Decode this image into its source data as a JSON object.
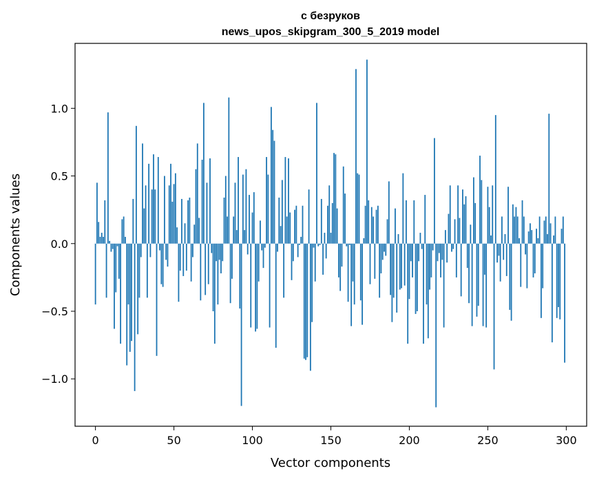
{
  "chart_data": {
    "type": "bar",
    "title_line1": "с безруков",
    "title_line2": "news_upos_skipgram_300_5_2019 model",
    "xlabel": "Vector components",
    "ylabel": "Components values",
    "xlim": [
      -13,
      313
    ],
    "ylim": [
      -1.35,
      1.48
    ],
    "x_ticks": [
      0,
      50,
      100,
      150,
      200,
      250,
      300
    ],
    "x_tick_labels": [
      "0",
      "50",
      "100",
      "150",
      "200",
      "250",
      "300"
    ],
    "y_ticks": [
      -1.0,
      -0.5,
      0.0,
      0.5,
      1.0
    ],
    "y_tick_labels": [
      "−1.0",
      "−0.5",
      "0.0",
      "0.5",
      "1.0"
    ],
    "bar_color": "#1f77b4",
    "grid": false,
    "values": [
      -0.45,
      0.45,
      0.16,
      0.05,
      0.08,
      0.05,
      0.32,
      -0.4,
      0.97,
      0.02,
      -0.06,
      -0.04,
      -0.63,
      -0.36,
      -0.02,
      -0.26,
      -0.74,
      0.18,
      0.2,
      0.05,
      -0.9,
      -0.45,
      -0.8,
      -0.72,
      0.33,
      -1.09,
      0.87,
      -0.67,
      -0.4,
      -0.1,
      0.74,
      0.26,
      0.43,
      -0.4,
      0.59,
      -0.1,
      0.4,
      0.66,
      0.4,
      -0.83,
      0.64,
      -0.05,
      -0.3,
      -0.32,
      0.5,
      -0.12,
      -0.17,
      0.43,
      0.59,
      0.31,
      0.44,
      0.52,
      0.12,
      -0.43,
      -0.2,
      0.33,
      -0.24,
      0.15,
      -0.2,
      0.32,
      0.34,
      -0.28,
      -0.1,
      0.14,
      0.55,
      0.74,
      0.19,
      -0.42,
      0.62,
      1.04,
      -0.38,
      0.45,
      -0.3,
      0.63,
      -0.07,
      -0.5,
      -0.74,
      -0.13,
      -0.45,
      -0.12,
      -0.22,
      -0.13,
      0.34,
      0.5,
      0.2,
      1.08,
      -0.44,
      -0.26,
      0.2,
      0.45,
      0.1,
      0.64,
      -0.48,
      -1.2,
      0.51,
      0.1,
      0.55,
      -0.08,
      0.36,
      -0.62,
      0.23,
      0.38,
      -0.65,
      -0.63,
      -0.28,
      0.17,
      -0.05,
      -0.18,
      -0.03,
      0.64,
      0.51,
      -0.62,
      1.01,
      0.84,
      0.76,
      -0.77,
      -0.06,
      0.34,
      0.13,
      0.47,
      -0.4,
      0.64,
      0.2,
      0.63,
      0.23,
      -0.27,
      -0.13,
      0.25,
      0.28,
      -0.1,
      -0.01,
      0.05,
      0.28,
      -0.85,
      -0.86,
      -0.84,
      0.4,
      -0.94,
      -0.58,
      -0.03,
      -0.28,
      1.04,
      -0.02,
      -0.01,
      0.33,
      -0.23,
      0.08,
      -0.11,
      0.28,
      0.43,
      0.08,
      0.3,
      0.67,
      0.66,
      0.26,
      -0.25,
      -0.35,
      -0.17,
      0.57,
      0.37,
      -0.02,
      -0.43,
      -0.01,
      -0.61,
      -0.28,
      -0.45,
      1.29,
      0.52,
      0.51,
      -0.42,
      -0.6,
      0.04,
      0.28,
      1.36,
      0.32,
      -0.3,
      0.27,
      0.2,
      -0.26,
      0.25,
      0.28,
      -0.4,
      -0.22,
      -0.12,
      -0.06,
      -0.09,
      0.18,
      0.46,
      -0.38,
      -0.58,
      -0.4,
      0.26,
      -0.51,
      0.07,
      -0.34,
      -0.33,
      0.52,
      -0.31,
      0.32,
      -0.74,
      -0.41,
      -0.13,
      -0.25,
      0.32,
      -0.52,
      -0.5,
      -0.13,
      0.08,
      -0.04,
      -0.74,
      0.36,
      -0.45,
      -0.7,
      -0.34,
      -0.25,
      -0.05,
      0.78,
      -1.21,
      -0.13,
      -0.07,
      -0.25,
      -0.12,
      -0.62,
      0.1,
      -0.14,
      0.22,
      0.43,
      -0.06,
      -0.04,
      0.18,
      -0.25,
      0.43,
      0.19,
      -0.39,
      0.4,
      0.29,
      0.35,
      -0.18,
      -0.44,
      0.14,
      -0.61,
      0.49,
      0.3,
      -0.54,
      -0.46,
      0.65,
      0.47,
      -0.61,
      -0.23,
      -0.62,
      0.42,
      0.27,
      0.06,
      0.43,
      -0.93,
      0.95,
      -0.14,
      -0.09,
      -0.28,
      0.2,
      -0.12,
      0.07,
      -0.24,
      0.42,
      -0.49,
      -0.57,
      0.29,
      0.2,
      0.27,
      0.2,
      0.04,
      -0.32,
      0.32,
      0.2,
      -0.08,
      -0.33,
      0.09,
      0.15,
      0.1,
      -0.25,
      -0.22,
      0.11,
      0.04,
      0.2,
      -0.55,
      -0.33,
      0.17,
      0.2,
      0.07,
      0.96,
      0.15,
      -0.73,
      0.06,
      0.2,
      -0.55,
      -0.47,
      -0.56,
      0.11,
      0.2,
      -0.88
    ]
  }
}
